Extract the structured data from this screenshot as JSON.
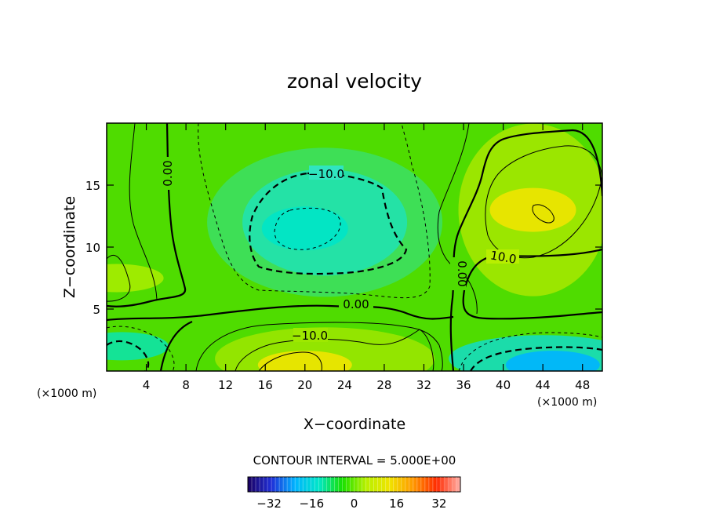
{
  "chart_data": {
    "type": "heatmap",
    "title": "zonal velocity",
    "xlabel": "X−coordinate",
    "ylabel": "Z−coordinate",
    "x_unit_label": "(×1000 m)",
    "y_unit_label": "(×1000 m)",
    "xlim": [
      0,
      50
    ],
    "ylim": [
      0,
      20
    ],
    "x_ticks": [
      4,
      8,
      12,
      16,
      20,
      24,
      28,
      32,
      36,
      40,
      44,
      48
    ],
    "y_ticks": [
      5,
      10,
      15
    ],
    "contour_interval_text": "CONTOUR INTERVAL = 5.000E+00",
    "colorbar": {
      "range": [
        -40,
        40
      ],
      "ticks": [
        -32,
        -16,
        0,
        16,
        32
      ],
      "colors": [
        "#1a0060",
        "#1f2fd8",
        "#00b4ff",
        "#00e6c8",
        "#18e000",
        "#b8f000",
        "#f0e400",
        "#ff9800",
        "#ff2a00",
        "#ffb0a8"
      ]
    },
    "contour_labels": [
      "0.00",
      "0.00",
      "0.00",
      "−10.0",
      "−10.0",
      "10.0"
    ],
    "field_features": [
      {
        "description": "negative core",
        "x": 20,
        "z": 11.5,
        "value": -15
      },
      {
        "description": "positive core",
        "x": 43,
        "z": 13,
        "value": 13
      },
      {
        "description": "near-surface positive",
        "x": 20,
        "z": 0.5,
        "value": 14
      },
      {
        "description": "near-surface negative",
        "x": 45,
        "z": 0.5,
        "value": -20
      },
      {
        "description": "near-surface negative",
        "x": 1.5,
        "z": 2,
        "value": -10
      },
      {
        "description": "left-edge positive",
        "x": 1,
        "z": 7.5,
        "value": 8
      }
    ],
    "grid": false,
    "legend": "none"
  }
}
